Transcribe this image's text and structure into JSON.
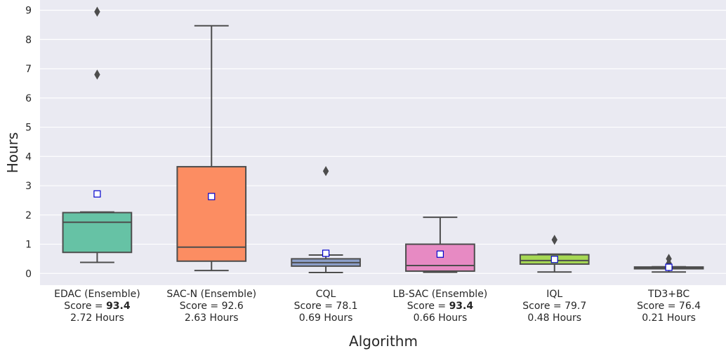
{
  "chart_data": {
    "type": "box",
    "xlabel": "Algorithm",
    "ylabel": "Hours",
    "ylim": [
      -0.4,
      9.35
    ],
    "yticks": [
      0,
      1,
      2,
      3,
      4,
      5,
      6,
      7,
      8,
      9
    ],
    "grid": true,
    "legend": "none",
    "categories": [
      {
        "name": "EDAC (Ensemble)",
        "score_prefix": "Score = ",
        "score": "93.4",
        "score_bold": true,
        "time_label": "2.72 Hours",
        "color": "#66c2a5",
        "whisker_low": 0.38,
        "q1": 0.72,
        "median": 1.75,
        "q3": 2.08,
        "whisker_high": 2.1,
        "mean": 2.72,
        "outliers": [
          6.8,
          8.95
        ]
      },
      {
        "name": "SAC-N (Ensemble)",
        "score_prefix": "Score = ",
        "score": "92.6",
        "score_bold": false,
        "time_label": "2.63 Hours",
        "color": "#fc8d62",
        "whisker_low": 0.1,
        "q1": 0.42,
        "median": 0.9,
        "q3": 3.65,
        "whisker_high": 8.47,
        "mean": 2.63,
        "outliers": []
      },
      {
        "name": "CQL",
        "score_prefix": "Score = ",
        "score": "78.1",
        "score_bold": false,
        "time_label": "0.69 Hours",
        "color": "#8da0cb",
        "whisker_low": 0.03,
        "q1": 0.25,
        "median": 0.37,
        "q3": 0.5,
        "whisker_high": 0.63,
        "mean": 0.69,
        "outliers": [
          3.5
        ]
      },
      {
        "name": "LB-SAC (Ensemble)",
        "score_prefix": "Score = ",
        "score": "93.4",
        "score_bold": true,
        "time_label": "0.66 Hours",
        "color": "#e78ac3",
        "whisker_low": 0.04,
        "q1": 0.08,
        "median": 0.27,
        "q3": 1.0,
        "whisker_high": 1.92,
        "mean": 0.66,
        "outliers": []
      },
      {
        "name": "IQL",
        "score_prefix": "Score = ",
        "score": "79.7",
        "score_bold": false,
        "time_label": "0.48 Hours",
        "color": "#a6d854",
        "whisker_low": 0.05,
        "q1": 0.32,
        "median": 0.44,
        "q3": 0.64,
        "whisker_high": 0.66,
        "mean": 0.48,
        "outliers": [
          1.15
        ]
      },
      {
        "name": "TD3+BC",
        "score_prefix": "Score = ",
        "score": "76.4",
        "score_bold": false,
        "time_label": "0.21 Hours",
        "color": "#ffd92f",
        "whisker_low": 0.05,
        "q1": 0.16,
        "median": 0.2,
        "q3": 0.22,
        "whisker_high": 0.23,
        "mean": 0.21,
        "outliers": [
          0.5,
          0.35
        ]
      }
    ]
  }
}
